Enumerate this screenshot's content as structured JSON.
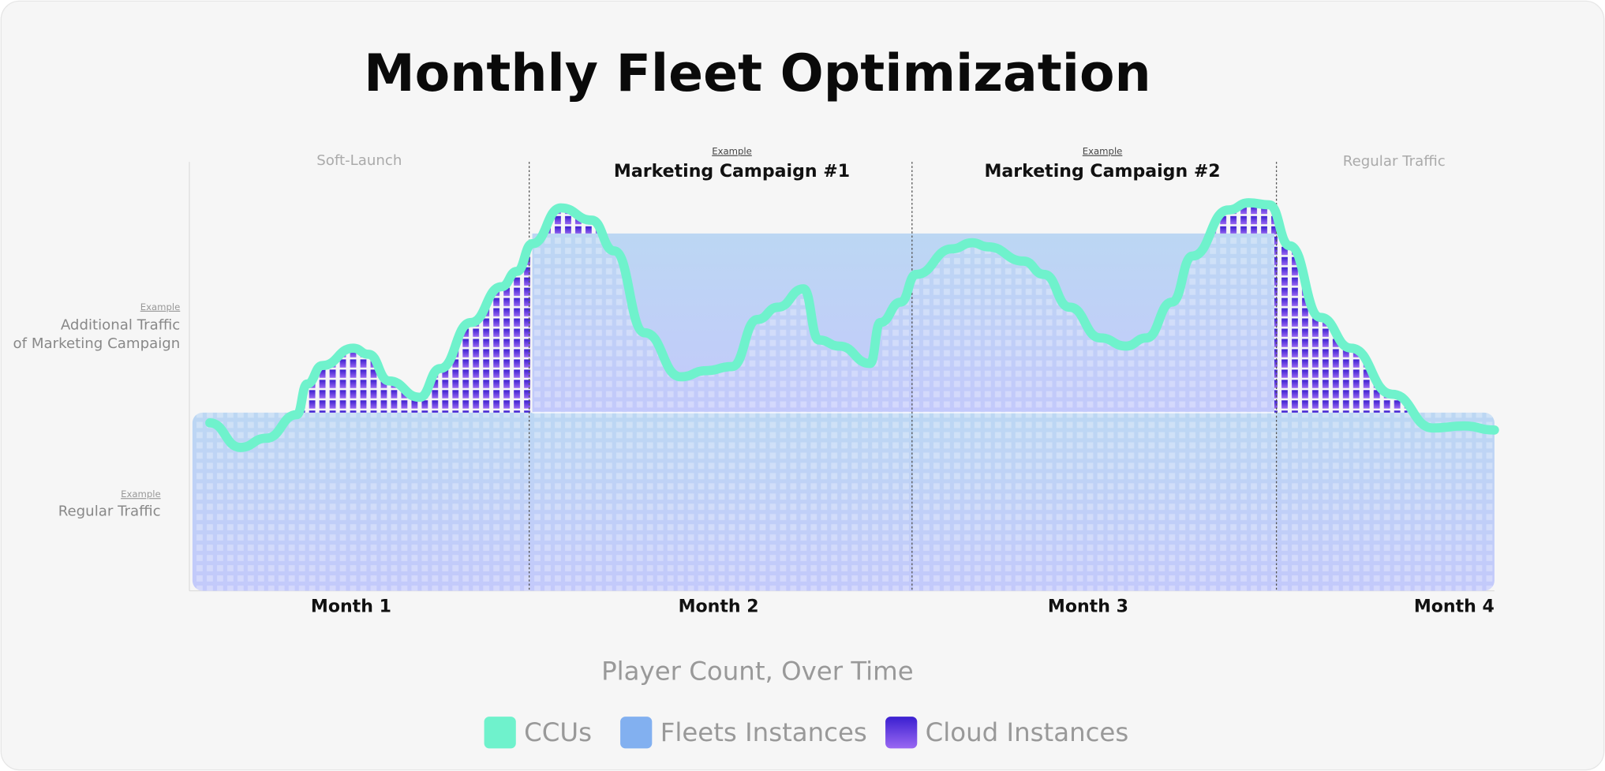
{
  "title": "Monthly Fleet Optimization",
  "phases": [
    {
      "label": "Soft-Launch"
    },
    {
      "note": "Example",
      "label": "Marketing Campaign #1"
    },
    {
      "note": "Example",
      "label": "Marketing Campaign #2"
    },
    {
      "label": "Regular Traffic"
    }
  ],
  "side_labels": [
    {
      "note": "Example",
      "lines": [
        "Additional Traffic",
        "of Marketing Campaign"
      ]
    },
    {
      "note": "Example",
      "lines": [
        "Regular Traffic"
      ]
    }
  ],
  "months": [
    "Month 1",
    "Month 2",
    "Month 3",
    "Month 4"
  ],
  "axis_label": "Player Count, Over Time",
  "legend": [
    "CCUs",
    "Fleets Instances",
    "Cloud Instances"
  ]
}
